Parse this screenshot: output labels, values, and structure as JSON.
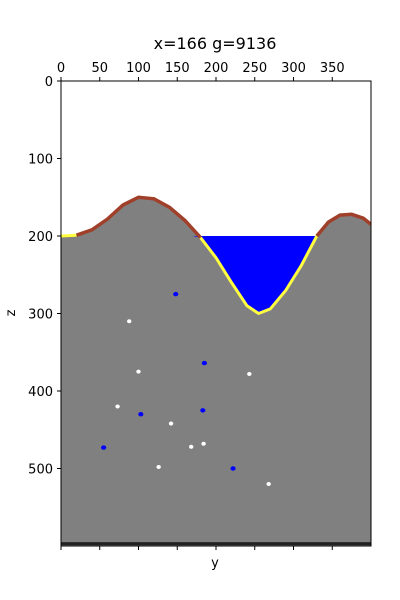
{
  "chart_data": {
    "type": "heatmap",
    "title": "x=166 g=9136",
    "xlabel": "y",
    "ylabel": "z",
    "x_axis_position": "top",
    "xlim": [
      0,
      400
    ],
    "ylim": [
      600,
      0
    ],
    "xticks": [
      0,
      50,
      100,
      150,
      200,
      250,
      300,
      350
    ],
    "yticks": [
      0,
      100,
      200,
      300,
      400,
      500
    ],
    "grid": false,
    "legend": "none",
    "colors": {
      "rock": "#808080",
      "water": "#0000ff",
      "soil": "#a0402a",
      "sand": "#ffff40",
      "void": "#ffffff",
      "background": "#ffffff"
    },
    "terrain_surface": [
      [
        0,
        200
      ],
      [
        20,
        199
      ],
      [
        40,
        192
      ],
      [
        60,
        178
      ],
      [
        80,
        160
      ],
      [
        100,
        150
      ],
      [
        120,
        152
      ],
      [
        140,
        163
      ],
      [
        160,
        180
      ],
      [
        180,
        202
      ],
      [
        200,
        228
      ],
      [
        220,
        260
      ],
      [
        240,
        290
      ],
      [
        255,
        300
      ],
      [
        270,
        294
      ],
      [
        290,
        270
      ],
      [
        310,
        238
      ],
      [
        330,
        200
      ],
      [
        345,
        182
      ],
      [
        360,
        173
      ],
      [
        375,
        172
      ],
      [
        390,
        177
      ],
      [
        400,
        185
      ]
    ],
    "water_body": {
      "level": 200,
      "y_range": [
        170,
        335
      ],
      "bottom_depth": 300
    },
    "water_pockets": [
      [
        148,
        275
      ],
      [
        185,
        364
      ],
      [
        103,
        430
      ],
      [
        183,
        425
      ],
      [
        55,
        473
      ],
      [
        222,
        500
      ]
    ],
    "void_pockets": [
      [
        88,
        310
      ],
      [
        100,
        375
      ],
      [
        243,
        378
      ],
      [
        73,
        420
      ],
      [
        142,
        442
      ],
      [
        168,
        472
      ],
      [
        184,
        468
      ],
      [
        126,
        498
      ],
      [
        268,
        520
      ]
    ],
    "bedrock_depth": 595
  }
}
